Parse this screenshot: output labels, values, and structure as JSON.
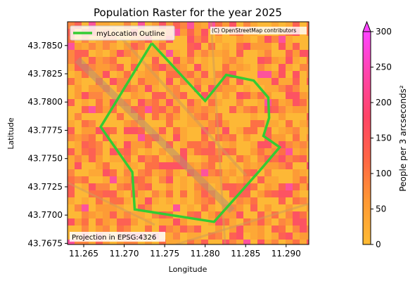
{
  "chart_data": {
    "type": "heatmap",
    "title": "Population Raster for the year 2025",
    "xlabel": "Longitude",
    "ylabel": "Latitude",
    "xlim": [
      11.263,
      11.2928
    ],
    "ylim": [
      43.7674,
      43.8
    ],
    "ylim_actual": [
      43.7674,
      43.7871
    ],
    "x_ticks": [
      11.265,
      11.27,
      11.275,
      11.28,
      11.285,
      11.29
    ],
    "x_tick_labels": [
      "11.265",
      "11.270",
      "11.275",
      "11.280",
      "11.285",
      "11.290"
    ],
    "y_ticks": [
      43.7675,
      43.77,
      43.7725,
      43.775,
      43.7775,
      43.78,
      43.7825,
      43.785
    ],
    "y_tick_labels": [
      "43.7675",
      "43.7700",
      "43.7725",
      "43.7750",
      "43.7775",
      "43.7800",
      "43.7825",
      "43.7850"
    ],
    "grid": false,
    "legend": {
      "placement": "top-left",
      "entries": [
        {
          "name": "myLocation Outline",
          "color": "#33cc33"
        }
      ]
    },
    "annotations": {
      "attribution": "(C) OpenStreetMap contributors",
      "projection": "Projection in EPSG:4326"
    },
    "colorbar": {
      "label": "People per 3 arcseconds²",
      "min": 0,
      "max": 300,
      "ticks": [
        0,
        50,
        100,
        150,
        200,
        250,
        300
      ],
      "tick_labels": [
        "0",
        "50",
        "100",
        "150",
        "200",
        "250",
        "300"
      ],
      "extend": "max",
      "colors": [
        "#ffbb33",
        "#ff9933",
        "#ff6644",
        "#ff4466",
        "#ff44aa",
        "#ff44ff"
      ]
    },
    "outline": {
      "name": "myLocation Outline",
      "color": "#33cc33",
      "lon_lat": [
        [
          11.2734,
          43.7852
        ],
        [
          11.28,
          43.7801
        ],
        [
          11.2826,
          43.7824
        ],
        [
          11.286,
          43.7819
        ],
        [
          11.2878,
          43.7804
        ],
        [
          11.2879,
          43.7786
        ],
        [
          11.2872,
          43.777
        ],
        [
          11.2892,
          43.776
        ],
        [
          11.2867,
          43.7739
        ],
        [
          11.2811,
          43.7694
        ],
        [
          11.2713,
          43.7705
        ],
        [
          11.271,
          43.7738
        ],
        [
          11.2671,
          43.7778
        ],
        [
          11.2734,
          43.7852
        ]
      ]
    }
  }
}
